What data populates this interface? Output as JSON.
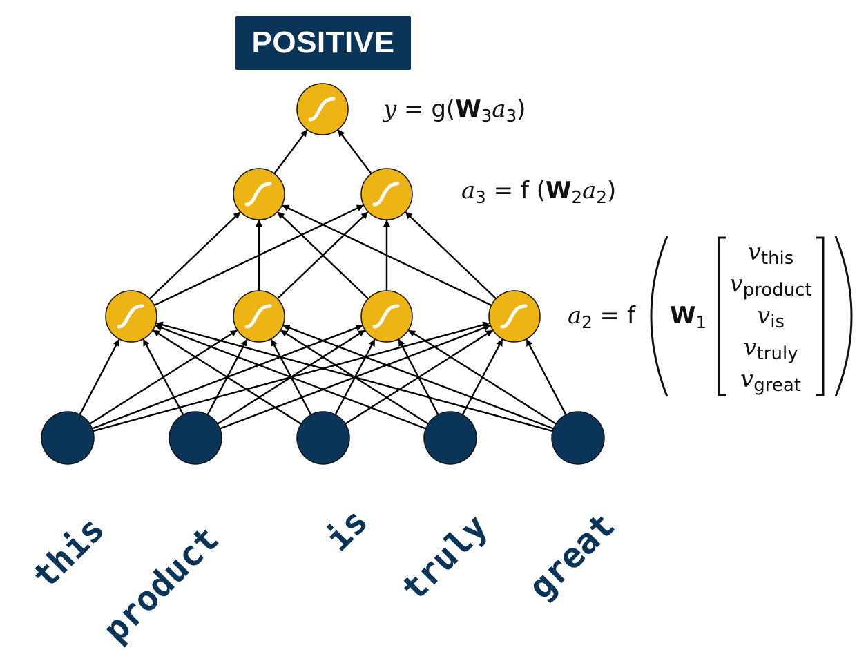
{
  "output": {
    "label": "POSITIVE"
  },
  "equations": {
    "y": {
      "lhs": "y",
      "rest": "= g(",
      "W": "W",
      "Wsub": "3",
      "a": "a",
      "asub": "3",
      "close": ")"
    },
    "a3": {
      "lhs": "a",
      "lhssub": "3",
      "rest": "= f (",
      "W": "W",
      "Wsub": "2",
      "a": "a",
      "asub": "2",
      "close": ")"
    },
    "a2": {
      "lhs": "a",
      "lhssub": "2",
      "rest": "= f",
      "W": "W",
      "Wsub": "1"
    }
  },
  "vector": [
    {
      "sym": "v",
      "sub": "this"
    },
    {
      "sym": "v",
      "sub": "product"
    },
    {
      "sym": "v",
      "sub": "is"
    },
    {
      "sym": "v",
      "sub": "truly"
    },
    {
      "sym": "v",
      "sub": "great"
    }
  ],
  "words": [
    "this",
    "product",
    "is",
    "truly",
    "great"
  ],
  "colors": {
    "navy": "#0b3558",
    "neuron": "#ecb414",
    "arrow": "#000000"
  },
  "icons": {
    "neuron": "sigmoid-icon"
  }
}
